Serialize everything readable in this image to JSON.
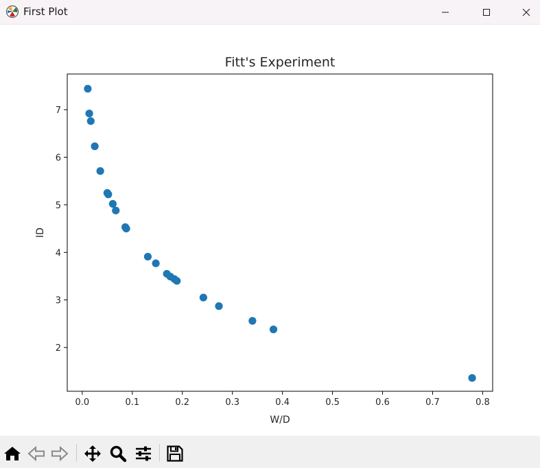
{
  "window": {
    "title": "First Plot",
    "icon": "matplotlib-icon",
    "controls": [
      "minimize-icon",
      "maximize-icon",
      "close-icon"
    ]
  },
  "toolbar": {
    "buttons": [
      "home-icon",
      "back-arrow-icon",
      "forward-arrow-icon",
      "pan-icon",
      "zoom-icon",
      "configure-subplots-icon",
      "save-icon"
    ]
  },
  "colors": {
    "marker": "#1f77b4",
    "axes": "#000000",
    "titlebar": "#f7f3f6",
    "toolbar": "#f0f0f0"
  },
  "chart_data": {
    "type": "scatter",
    "title": "Fitt's Experiment",
    "xlabel": "W/D",
    "ylabel": "ID",
    "xlim": [
      -0.03,
      0.82
    ],
    "ylim": [
      1.08,
      7.75
    ],
    "xticks": [
      0.0,
      0.1,
      0.2,
      0.3,
      0.4,
      0.5,
      0.6,
      0.7,
      0.8
    ],
    "xtick_labels": [
      "0.0",
      "0.1",
      "0.2",
      "0.3",
      "0.4",
      "0.5",
      "0.6",
      "0.7",
      "0.8"
    ],
    "yticks": [
      2,
      3,
      4,
      5,
      6,
      7
    ],
    "ytick_labels": [
      "2",
      "3",
      "4",
      "5",
      "6",
      "7"
    ],
    "grid": false,
    "series": [
      {
        "x": [
          0.011,
          0.014,
          0.017,
          0.025,
          0.036,
          0.05,
          0.052,
          0.061,
          0.067,
          0.086,
          0.088,
          0.131,
          0.147,
          0.169,
          0.176,
          0.184,
          0.189,
          0.242,
          0.273,
          0.34,
          0.382,
          0.779
        ],
        "y": [
          7.44,
          6.92,
          6.76,
          6.23,
          5.71,
          5.25,
          5.22,
          5.02,
          4.88,
          4.53,
          4.5,
          3.91,
          3.77,
          3.55,
          3.49,
          3.44,
          3.4,
          3.05,
          2.87,
          2.56,
          2.38,
          1.36
        ]
      }
    ]
  }
}
